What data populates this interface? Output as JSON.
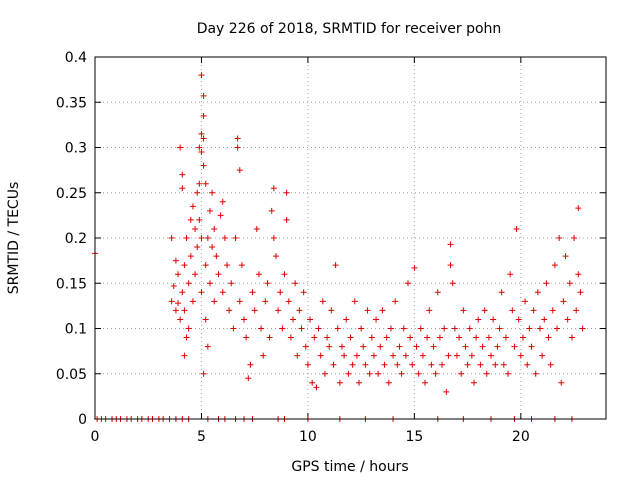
{
  "chart_data": {
    "type": "scatter",
    "title": "Day 226 of 2018, SRMTID for receiver pohn",
    "xlabel": "GPS time / hours",
    "ylabel": "SRMTID / TECUs",
    "xlim": [
      0,
      24
    ],
    "ylim": [
      0,
      0.4
    ],
    "xticks": [
      0,
      5,
      10,
      15,
      20
    ],
    "xtick_labels": [
      "0",
      "5",
      "10",
      "15",
      "20"
    ],
    "yticks": [
      0,
      0.05,
      0.1,
      0.15,
      0.2,
      0.25,
      0.3,
      0.35,
      0.4
    ],
    "ytick_labels": [
      "0",
      "0.05",
      "0.1",
      "0.15",
      "0.2",
      "0.25",
      "0.3",
      "0.35",
      "0.4"
    ],
    "grid": true,
    "marker": "+",
    "color": "#e00000",
    "series": [
      {
        "name": "SRMTID",
        "points": [
          [
            0.0,
            0.183
          ],
          [
            3.6,
            0.13
          ],
          [
            3.6,
            0.2
          ],
          [
            3.7,
            0.147
          ],
          [
            3.8,
            0.12
          ],
          [
            3.8,
            0.175
          ],
          [
            3.9,
            0.128
          ],
          [
            3.9,
            0.16
          ],
          [
            4.0,
            0.3
          ],
          [
            4.0,
            0.11
          ],
          [
            4.1,
            0.27
          ],
          [
            4.1,
            0.255
          ],
          [
            4.1,
            0.14
          ],
          [
            4.2,
            0.07
          ],
          [
            4.2,
            0.12
          ],
          [
            4.2,
            0.17
          ],
          [
            4.3,
            0.2
          ],
          [
            4.3,
            0.09
          ],
          [
            4.4,
            0.1
          ],
          [
            4.4,
            0.15
          ],
          [
            4.5,
            0.22
          ],
          [
            4.5,
            0.18
          ],
          [
            4.6,
            0.235
          ],
          [
            4.6,
            0.13
          ],
          [
            4.7,
            0.16
          ],
          [
            4.7,
            0.21
          ],
          [
            4.8,
            0.19
          ],
          [
            4.8,
            0.25
          ],
          [
            4.9,
            0.26
          ],
          [
            4.9,
            0.3
          ],
          [
            4.9,
            0.22
          ],
          [
            5.0,
            0.38
          ],
          [
            5.0,
            0.315
          ],
          [
            5.0,
            0.295
          ],
          [
            5.0,
            0.2
          ],
          [
            5.0,
            0.14
          ],
          [
            5.1,
            0.357
          ],
          [
            5.1,
            0.31
          ],
          [
            5.1,
            0.335
          ],
          [
            5.1,
            0.28
          ],
          [
            5.1,
            0.05
          ],
          [
            5.2,
            0.26
          ],
          [
            5.2,
            0.17
          ],
          [
            5.2,
            0.11
          ],
          [
            5.3,
            0.2
          ],
          [
            5.3,
            0.08
          ],
          [
            5.4,
            0.15
          ],
          [
            5.4,
            0.23
          ],
          [
            5.5,
            0.25
          ],
          [
            5.5,
            0.19
          ],
          [
            5.6,
            0.21
          ],
          [
            5.6,
            0.13
          ],
          [
            5.7,
            0.18
          ],
          [
            5.8,
            0.16
          ],
          [
            5.9,
            0.225
          ],
          [
            6.0,
            0.24
          ],
          [
            6.0,
            0.14
          ],
          [
            6.1,
            0.2
          ],
          [
            6.2,
            0.17
          ],
          [
            6.3,
            0.12
          ],
          [
            6.4,
            0.15
          ],
          [
            6.5,
            0.1
          ],
          [
            6.6,
            0.2
          ],
          [
            6.7,
            0.31
          ],
          [
            6.7,
            0.3
          ],
          [
            6.8,
            0.275
          ],
          [
            6.8,
            0.13
          ],
          [
            6.9,
            0.17
          ],
          [
            7.0,
            0.11
          ],
          [
            7.1,
            0.09
          ],
          [
            7.2,
            0.045
          ],
          [
            7.3,
            0.06
          ],
          [
            7.4,
            0.14
          ],
          [
            7.5,
            0.12
          ],
          [
            7.6,
            0.21
          ],
          [
            7.7,
            0.16
          ],
          [
            7.8,
            0.1
          ],
          [
            7.9,
            0.07
          ],
          [
            8.0,
            0.13
          ],
          [
            8.1,
            0.15
          ],
          [
            8.2,
            0.09
          ],
          [
            8.3,
            0.23
          ],
          [
            8.4,
            0.255
          ],
          [
            8.4,
            0.2
          ],
          [
            8.5,
            0.18
          ],
          [
            8.6,
            0.12
          ],
          [
            8.7,
            0.14
          ],
          [
            8.8,
            0.1
          ],
          [
            8.9,
            0.16
          ],
          [
            9.0,
            0.25
          ],
          [
            9.0,
            0.22
          ],
          [
            9.1,
            0.13
          ],
          [
            9.2,
            0.09
          ],
          [
            9.3,
            0.11
          ],
          [
            9.4,
            0.15
          ],
          [
            9.5,
            0.07
          ],
          [
            9.6,
            0.12
          ],
          [
            9.7,
            0.1
          ],
          [
            9.8,
            0.14
          ],
          [
            9.9,
            0.08
          ],
          [
            10.0,
            0.06
          ],
          [
            10.1,
            0.11
          ],
          [
            10.2,
            0.04
          ],
          [
            10.3,
            0.09
          ],
          [
            10.4,
            0.035
          ],
          [
            10.5,
            0.1
          ],
          [
            10.6,
            0.07
          ],
          [
            10.7,
            0.13
          ],
          [
            10.8,
            0.05
          ],
          [
            10.9,
            0.09
          ],
          [
            11.0,
            0.08
          ],
          [
            11.1,
            0.12
          ],
          [
            11.2,
            0.06
          ],
          [
            11.3,
            0.17
          ],
          [
            11.4,
            0.1
          ],
          [
            11.5,
            0.04
          ],
          [
            11.6,
            0.08
          ],
          [
            11.7,
            0.07
          ],
          [
            11.8,
            0.11
          ],
          [
            11.9,
            0.05
          ],
          [
            12.0,
            0.09
          ],
          [
            12.1,
            0.06
          ],
          [
            12.2,
            0.13
          ],
          [
            12.3,
            0.07
          ],
          [
            12.4,
            0.04
          ],
          [
            12.5,
            0.1
          ],
          [
            12.6,
            0.08
          ],
          [
            12.7,
            0.06
          ],
          [
            12.8,
            0.12
          ],
          [
            12.9,
            0.05
          ],
          [
            13.0,
            0.09
          ],
          [
            13.1,
            0.07
          ],
          [
            13.2,
            0.11
          ],
          [
            13.3,
            0.05
          ],
          [
            13.4,
            0.08
          ],
          [
            13.5,
            0.12
          ],
          [
            13.6,
            0.06
          ],
          [
            13.7,
            0.09
          ],
          [
            13.8,
            0.04
          ],
          [
            13.9,
            0.1
          ],
          [
            14.0,
            0.07
          ],
          [
            14.1,
            0.13
          ],
          [
            14.2,
            0.06
          ],
          [
            14.3,
            0.08
          ],
          [
            14.4,
            0.05
          ],
          [
            14.5,
            0.1
          ],
          [
            14.6,
            0.07
          ],
          [
            14.7,
            0.15
          ],
          [
            14.8,
            0.09
          ],
          [
            14.9,
            0.06
          ],
          [
            15.0,
            0.167
          ],
          [
            15.1,
            0.08
          ],
          [
            15.2,
            0.05
          ],
          [
            15.3,
            0.1
          ],
          [
            15.4,
            0.07
          ],
          [
            15.5,
            0.04
          ],
          [
            15.6,
            0.09
          ],
          [
            15.7,
            0.12
          ],
          [
            15.8,
            0.06
          ],
          [
            15.9,
            0.08
          ],
          [
            16.0,
            0.05
          ],
          [
            16.1,
            0.14
          ],
          [
            16.2,
            0.09
          ],
          [
            16.3,
            0.06
          ],
          [
            16.4,
            0.1
          ],
          [
            16.5,
            0.03
          ],
          [
            16.6,
            0.07
          ],
          [
            16.7,
            0.193
          ],
          [
            16.7,
            0.17
          ],
          [
            16.8,
            0.15
          ],
          [
            16.9,
            0.1
          ],
          [
            17.0,
            0.07
          ],
          [
            17.1,
            0.09
          ],
          [
            17.2,
            0.05
          ],
          [
            17.3,
            0.12
          ],
          [
            17.4,
            0.08
          ],
          [
            17.5,
            0.06
          ],
          [
            17.6,
            0.1
          ],
          [
            17.7,
            0.07
          ],
          [
            17.8,
            0.04
          ],
          [
            17.9,
            0.09
          ],
          [
            18.0,
            0.11
          ],
          [
            18.1,
            0.06
          ],
          [
            18.2,
            0.08
          ],
          [
            18.3,
            0.12
          ],
          [
            18.4,
            0.05
          ],
          [
            18.5,
            0.09
          ],
          [
            18.6,
            0.07
          ],
          [
            18.7,
            0.11
          ],
          [
            18.8,
            0.06
          ],
          [
            18.9,
            0.08
          ],
          [
            19.0,
            0.1
          ],
          [
            19.1,
            0.14
          ],
          [
            19.2,
            0.06
          ],
          [
            19.3,
            0.09
          ],
          [
            19.4,
            0.05
          ],
          [
            19.5,
            0.16
          ],
          [
            19.6,
            0.12
          ],
          [
            19.7,
            0.08
          ],
          [
            19.8,
            0.21
          ],
          [
            19.9,
            0.11
          ],
          [
            20.0,
            0.07
          ],
          [
            20.1,
            0.09
          ],
          [
            20.2,
            0.13
          ],
          [
            20.3,
            0.06
          ],
          [
            20.4,
            0.1
          ],
          [
            20.5,
            0.08
          ],
          [
            20.6,
            0.12
          ],
          [
            20.7,
            0.05
          ],
          [
            20.8,
            0.14
          ],
          [
            20.9,
            0.1
          ],
          [
            21.0,
            0.07
          ],
          [
            21.1,
            0.11
          ],
          [
            21.2,
            0.15
          ],
          [
            21.3,
            0.09
          ],
          [
            21.4,
            0.06
          ],
          [
            21.5,
            0.12
          ],
          [
            21.6,
            0.17
          ],
          [
            21.7,
            0.1
          ],
          [
            21.8,
            0.2
          ],
          [
            21.9,
            0.04
          ],
          [
            22.0,
            0.13
          ],
          [
            22.1,
            0.18
          ],
          [
            22.2,
            0.11
          ],
          [
            22.3,
            0.15
          ],
          [
            22.4,
            0.09
          ],
          [
            22.5,
            0.2
          ],
          [
            22.6,
            0.12
          ],
          [
            22.7,
            0.233
          ],
          [
            22.7,
            0.16
          ],
          [
            22.8,
            0.14
          ],
          [
            22.9,
            0.1
          ]
        ]
      }
    ],
    "zero_markers_x": [
      0.1,
      0.3,
      0.5,
      0.8,
      1.0,
      1.2,
      1.5,
      1.7,
      2.0,
      2.2,
      2.5,
      2.7,
      3.0,
      3.2,
      3.5,
      3.8,
      4.1,
      4.4,
      5.3,
      5.8,
      6.1,
      6.6,
      7.0,
      7.4,
      8.6,
      8.9,
      10.0,
      11.5,
      12.7,
      14.0,
      16.1,
      17.3,
      18.6,
      19.7,
      20.5,
      21.6,
      22.4
    ]
  }
}
